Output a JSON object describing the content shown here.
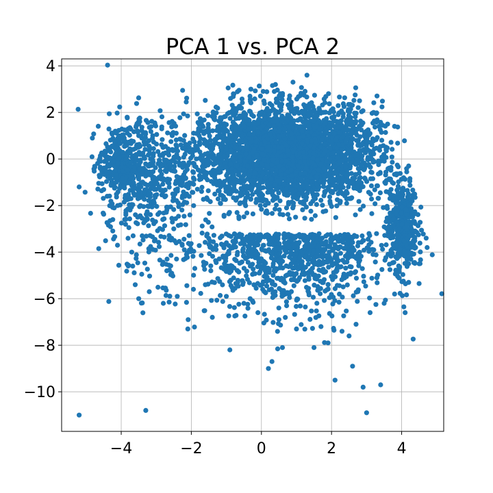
{
  "chart_data": {
    "type": "scatter",
    "title": "PCA 1 vs. PCA 2",
    "xlabel": "",
    "ylabel": "",
    "xlim": [
      -5.7,
      5.2
    ],
    "ylim": [
      -11.7,
      4.3
    ],
    "x_ticks": [
      -4,
      -2,
      0,
      2,
      4
    ],
    "y_ticks": [
      -10,
      -8,
      -6,
      -4,
      -2,
      0,
      2,
      4
    ],
    "x_tick_labels": [
      "−4",
      "−2",
      "0",
      "2",
      "4"
    ],
    "y_tick_labels": [
      "−10",
      "−8",
      "−6",
      "−4",
      "−2",
      "0",
      "2",
      "4"
    ],
    "grid": true,
    "series": [
      {
        "color": "#1f77b4",
        "points": [
          [
            -5.2,
            -11.0
          ],
          [
            -3.3,
            -10.8
          ],
          [
            3.0,
            -10.9
          ],
          [
            2.9,
            -9.8
          ],
          [
            3.4,
            -9.7
          ],
          [
            2.1,
            -9.5
          ],
          [
            -5.2,
            -1.2
          ],
          [
            -2.1,
            -7.3
          ],
          [
            -1.4,
            -6.8
          ],
          [
            -0.9,
            -8.2
          ],
          [
            0.2,
            -9.0
          ],
          [
            0.3,
            -8.7
          ],
          [
            0.6,
            -8.1
          ],
          [
            1.5,
            -8.1
          ],
          [
            1.9,
            -7.9
          ],
          [
            2.6,
            -8.9
          ],
          [
            2.5,
            -7.6
          ],
          [
            4.1,
            -6.6
          ],
          [
            -3.6,
            -5.4
          ],
          [
            -3.5,
            -6.0
          ],
          [
            -3.2,
            -5.7
          ],
          [
            -2.8,
            -6.2
          ],
          [
            -2.4,
            -5.9
          ],
          [
            -2.7,
            -4.8
          ],
          [
            -3.7,
            -4.0
          ],
          [
            -3.4,
            -3.3
          ],
          [
            -3.9,
            -2.6
          ],
          [
            -4.1,
            -2.0
          ],
          [
            -4.4,
            -1.6
          ],
          [
            -4.6,
            -0.4
          ],
          [
            -4.3,
            0.3
          ],
          [
            -4.0,
            0.9
          ],
          [
            -3.8,
            1.3
          ],
          [
            -3.5,
            1.5
          ],
          [
            -3.1,
            1.0
          ],
          [
            -2.8,
            0.5
          ],
          [
            4.2,
            -0.3
          ],
          [
            4.3,
            -1.8
          ],
          [
            4.0,
            -2.8
          ],
          [
            4.4,
            -3.8
          ],
          [
            4.7,
            -3.4
          ],
          [
            4.5,
            -4.5
          ],
          [
            4.2,
            -5.3
          ],
          [
            3.8,
            -5.8
          ],
          [
            3.5,
            -6.2
          ],
          [
            3.1,
            -6.6
          ],
          [
            2.7,
            -7.1
          ],
          [
            2.3,
            -7.4
          ],
          [
            1.7,
            -7.2
          ],
          [
            1.0,
            -7.3
          ],
          [
            0.5,
            -6.9
          ],
          [
            -0.1,
            -6.6
          ],
          [
            -0.5,
            -6.2
          ],
          [
            -1.0,
            -5.9
          ],
          [
            -1.6,
            -5.4
          ],
          [
            -1.9,
            -4.7
          ],
          [
            -2.2,
            -3.9
          ],
          [
            -2.5,
            -3.0
          ],
          [
            -2.7,
            -2.2
          ],
          [
            1.3,
            3.6
          ],
          [
            0.9,
            3.3
          ],
          [
            0.4,
            3.2
          ],
          [
            -0.3,
            3.0
          ],
          [
            -0.8,
            2.8
          ],
          [
            2.8,
            2.5
          ],
          [
            3.2,
            2.0
          ],
          [
            3.6,
            1.5
          ]
        ]
      }
    ]
  }
}
